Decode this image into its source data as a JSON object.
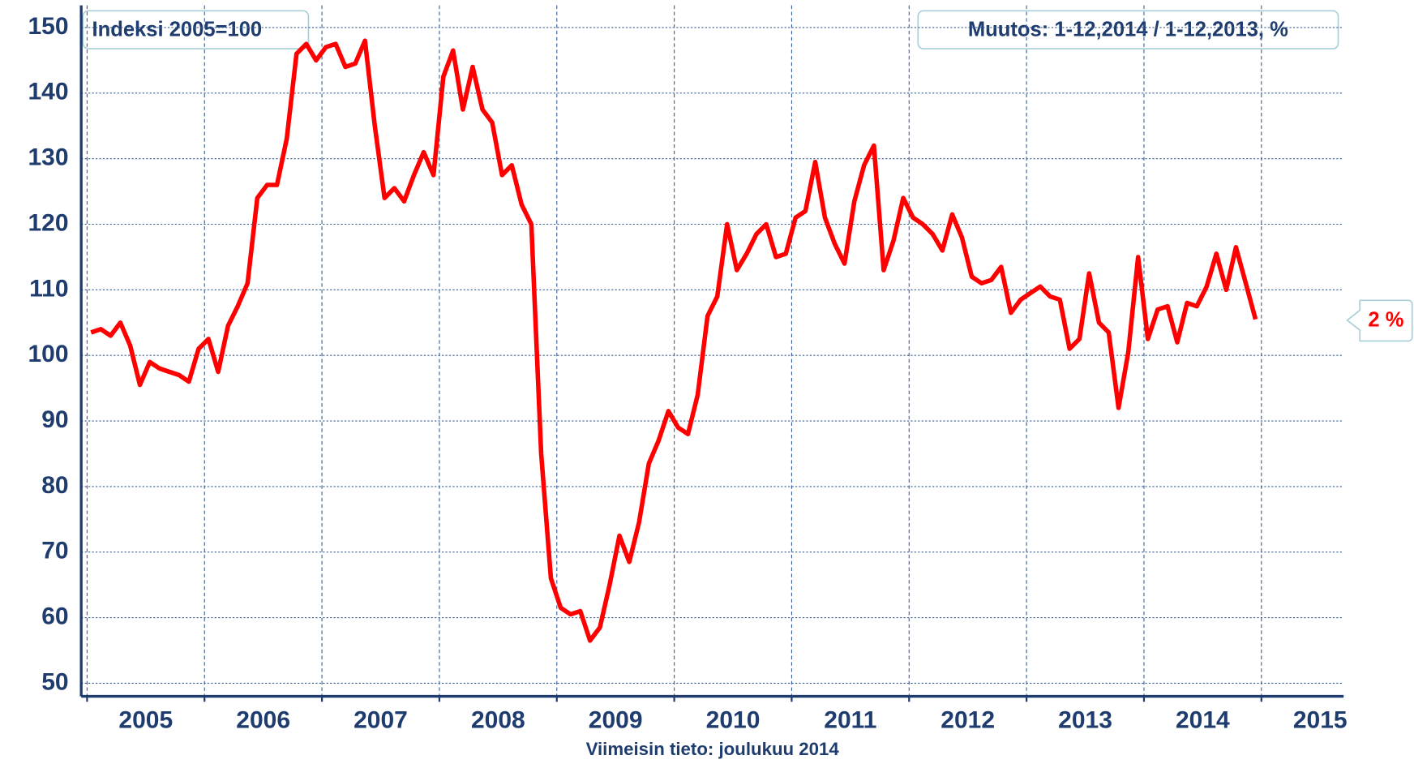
{
  "chart_data": {
    "type": "line",
    "index_label": "Indeksi 2005=100",
    "change_label": "Muutos: 1-12,2014 / 1-12,2013, %",
    "change_value": "2 %",
    "footer": "Viimeisin tieto: joulukuu 2014",
    "xlim": [
      2004.95,
      2015.7
    ],
    "xticks": [
      2005,
      2006,
      2007,
      2008,
      2009,
      2010,
      2011,
      2012,
      2013,
      2014,
      2015
    ],
    "ylim": [
      48,
      152
    ],
    "yticks": [
      50,
      60,
      70,
      80,
      90,
      100,
      110,
      120,
      130,
      140,
      150
    ],
    "grid": true,
    "series": [
      {
        "name": null,
        "color": "#ff0000",
        "values": [
          103.5,
          104,
          103,
          105,
          101.5,
          95.5,
          99,
          98,
          97.5,
          97,
          96,
          101,
          102.5,
          97.5,
          104.5,
          107.5,
          111,
          124,
          126,
          126,
          133,
          146,
          147.5,
          145,
          147,
          147.5,
          144,
          144.5,
          148,
          135,
          124,
          125.5,
          123.5,
          127.5,
          131,
          127.5,
          142.5,
          146.5,
          137.5,
          144,
          137.5,
          135.5,
          127.5,
          129,
          123,
          120,
          85,
          66,
          61.5,
          60.5,
          61,
          56.5,
          58.5,
          65,
          72.5,
          68.5,
          74.5,
          83.5,
          87,
          91.5,
          89,
          88,
          94,
          106,
          109,
          120,
          113,
          115.5,
          118.5,
          120,
          115,
          115.5,
          121,
          122,
          129.5,
          121,
          117,
          114,
          123.5,
          129,
          132,
          113,
          117.5,
          124,
          121,
          120,
          118.5,
          116,
          121.5,
          118,
          112,
          111,
          111.5,
          113.5,
          106.5,
          108.5,
          109.5,
          110.5,
          109,
          108.5,
          101,
          102.5,
          112.5,
          105,
          103.5,
          92,
          100.5,
          115,
          102.5,
          107,
          107.5,
          102,
          108,
          107.5,
          110.5,
          115.5,
          110,
          116.5,
          111,
          105.5
        ]
      }
    ]
  }
}
